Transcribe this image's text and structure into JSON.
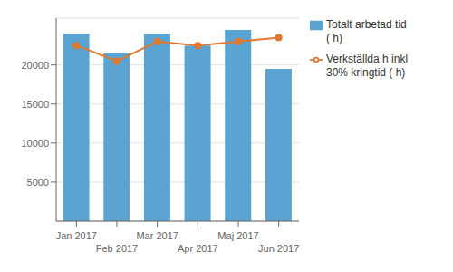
{
  "chart_data": {
    "type": "bar",
    "categories": [
      "Jan 2017",
      "Feb 2017",
      "Mar 2017",
      "Apr 2017",
      "Maj 2017",
      "Jun 2017"
    ],
    "series": [
      {
        "name": "Totalt arbetad tid\n( h)",
        "type": "bar",
        "color": "#5BA3D0",
        "values": [
          24000,
          21500,
          24000,
          22500,
          24500,
          19500
        ]
      },
      {
        "name": "Verkställda h inkl\n30% kringtid ( h)",
        "type": "line",
        "color": "#E07830",
        "marker": "circle",
        "values": [
          22500,
          20500,
          23000,
          22500,
          23000,
          23500
        ]
      }
    ],
    "ylim": [
      0,
      26000
    ],
    "yticks": [
      5000,
      10000,
      15000,
      20000
    ],
    "grid": true,
    "legend": "right"
  }
}
